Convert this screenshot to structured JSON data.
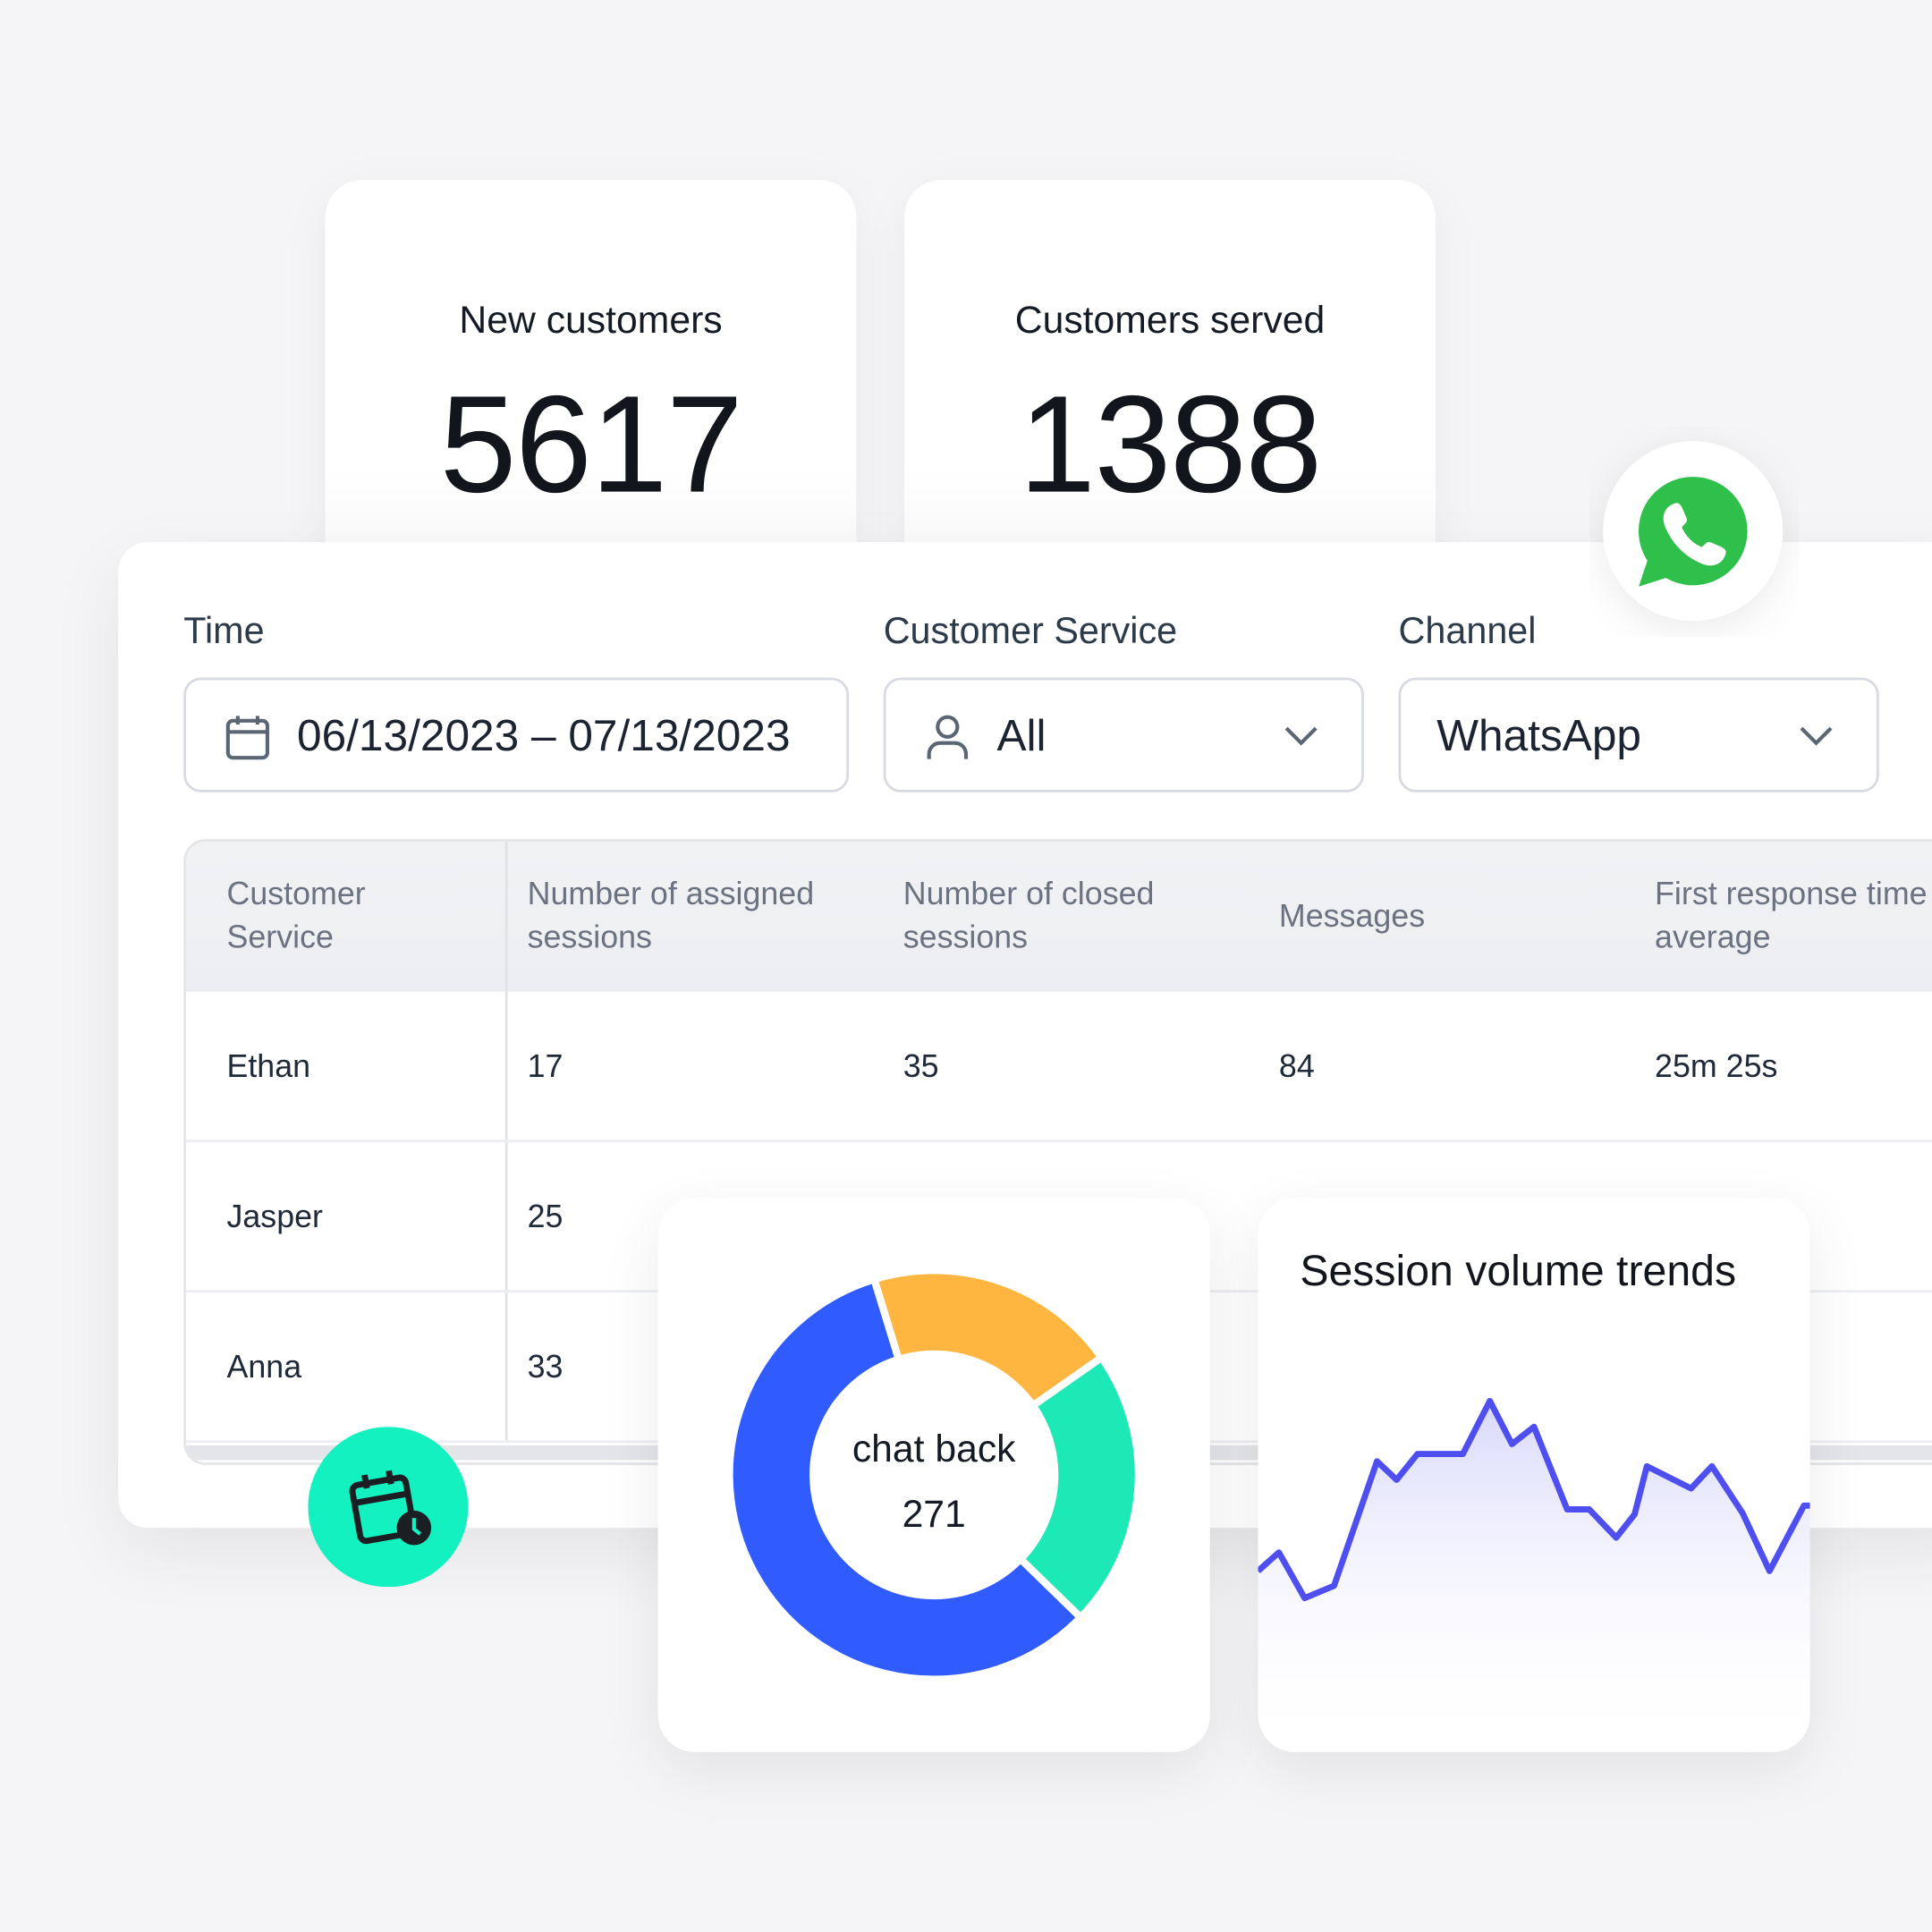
{
  "cards": [
    {
      "label": "New customers",
      "value": 5617
    },
    {
      "label": "Customers served",
      "value": 1388
    }
  ],
  "filters": [
    {
      "label": "Time",
      "value": "06/13/2023 – 07/13/2023"
    },
    {
      "label": "Customer Service",
      "value": "All"
    },
    {
      "label": "Channel",
      "value": "WhatsApp"
    }
  ],
  "table": {
    "columns": [
      "Customer Service",
      "Number of assigned sessions",
      "Number of closed sessions",
      "Messages",
      "First response time average"
    ],
    "rows": [
      [
        "Ethan",
        17,
        35,
        84,
        "25m 25s"
      ],
      [
        "Jasper",
        25
      ],
      [
        "Anna",
        33
      ]
    ]
  },
  "chart_data": [
    {
      "type": "pie",
      "center_label": "chat back",
      "center_value": 271,
      "values": [
        20,
        22,
        58
      ],
      "colors": [
        "#ffb640",
        "#1de9b6",
        "#2f5bff"
      ]
    },
    {
      "type": "line",
      "title": "Session volume trends",
      "color": "#4f4ff0",
      "x": [
        0,
        17,
        38,
        62,
        97,
        113,
        130,
        167,
        189,
        207,
        225,
        252,
        270,
        292,
        307,
        317,
        353,
        370,
        395,
        417,
        445,
        450
      ],
      "values": [
        45,
        60,
        23,
        33,
        134,
        119,
        140,
        140,
        183,
        148,
        162,
        95,
        95,
        72,
        91,
        130,
        112,
        130,
        92,
        45,
        98,
        98
      ],
      "xlim": [
        0,
        450
      ],
      "ylim": [
        -100,
        250
      ]
    }
  ]
}
